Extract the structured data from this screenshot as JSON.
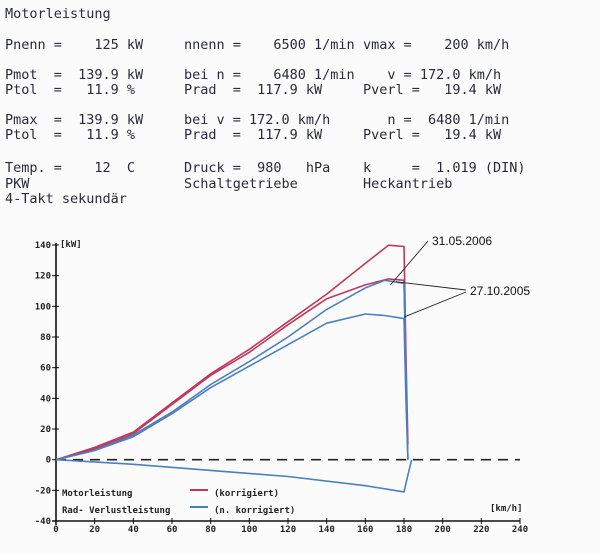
{
  "header": {
    "title": "Motorleistung",
    "rows": [
      [
        "Pnenn =    125 kW",
        "nnenn =    6500 1/min",
        "vmax =    200 km/h"
      ],
      [
        "Pmot  =  139.9 kW",
        "bei n =    6480 1/min",
        "   v = 172.0 km/h"
      ],
      [
        "Ptol  =   11.9 %",
        "Prad  =  117.9 kW",
        "Pverl =   19.4 kW"
      ],
      [
        "Pmax  =  139.9 kW",
        "bei v = 172.0 km/h",
        "   n =  6480 1/min"
      ],
      [
        "Ptol  =   11.9 %",
        "Prad  =  117.9 kW",
        "Pverl =   19.4 kW"
      ],
      [
        "Temp. =    12  C",
        "Druck =  980   hPa",
        "k     =  1.019 (DIN)"
      ],
      [
        "PKW",
        "Schaltgetriebe",
        "Heckantrieb"
      ],
      [
        "4-Takt sekundär",
        "",
        ""
      ]
    ]
  },
  "chart_data": {
    "type": "line",
    "xlabel": "[km/h]",
    "ylabel": "[kW]",
    "xlim": [
      0,
      240
    ],
    "ylim": [
      -40,
      140
    ],
    "xticks": [
      "0",
      "20",
      "40",
      "60",
      "80",
      "100",
      "120",
      "140",
      "160",
      "180",
      "200",
      "220",
      "240"
    ],
    "yticks": [
      "140",
      "120",
      "100",
      "80",
      "60",
      "40",
      "20",
      "0",
      "-20",
      "-40"
    ],
    "legend": [
      {
        "text": "Motorleistung",
        "sample": "(korrigiert)"
      },
      {
        "text": "Rad- Verlustleistung",
        "sample": "(n. korrigiert)"
      }
    ],
    "annotations": [
      "31.05.2006",
      "27.10.2005"
    ],
    "series": [
      {
        "color": "#c0385a",
        "x": [
          0,
          20,
          40,
          60,
          80,
          100,
          120,
          140,
          160,
          172,
          180,
          181,
          182
        ],
        "y": [
          0,
          8,
          18,
          37,
          56,
          72,
          90,
          108,
          128,
          139.9,
          139,
          70,
          10
        ]
      },
      {
        "color": "#c0385a",
        "x": [
          0,
          20,
          40,
          60,
          80,
          100,
          120,
          140,
          160,
          172,
          180,
          181
        ],
        "y": [
          0,
          7,
          17,
          36,
          55,
          70,
          88,
          105,
          114,
          117.9,
          117,
          65
        ]
      },
      {
        "color": "#4a7fc0",
        "x": [
          0,
          20,
          40,
          60,
          80,
          100,
          120,
          140,
          160,
          170,
          180,
          181,
          182
        ],
        "y": [
          0,
          6,
          16,
          31,
          49,
          64,
          80,
          98,
          112,
          117,
          115,
          60,
          0
        ]
      },
      {
        "color": "#4a7fc0",
        "x": [
          0,
          20,
          40,
          60,
          80,
          100,
          120,
          140,
          160,
          170,
          180,
          181,
          182
        ],
        "y": [
          0,
          6,
          15,
          30,
          47,
          61,
          75,
          89,
          95,
          94,
          92,
          40,
          0
        ]
      },
      {
        "color": "#4a7fc0",
        "x": [
          0,
          40,
          80,
          120,
          160,
          180,
          182,
          184
        ],
        "y": [
          0,
          -3,
          -7,
          -11,
          -17,
          -21,
          -10,
          0
        ]
      }
    ]
  }
}
